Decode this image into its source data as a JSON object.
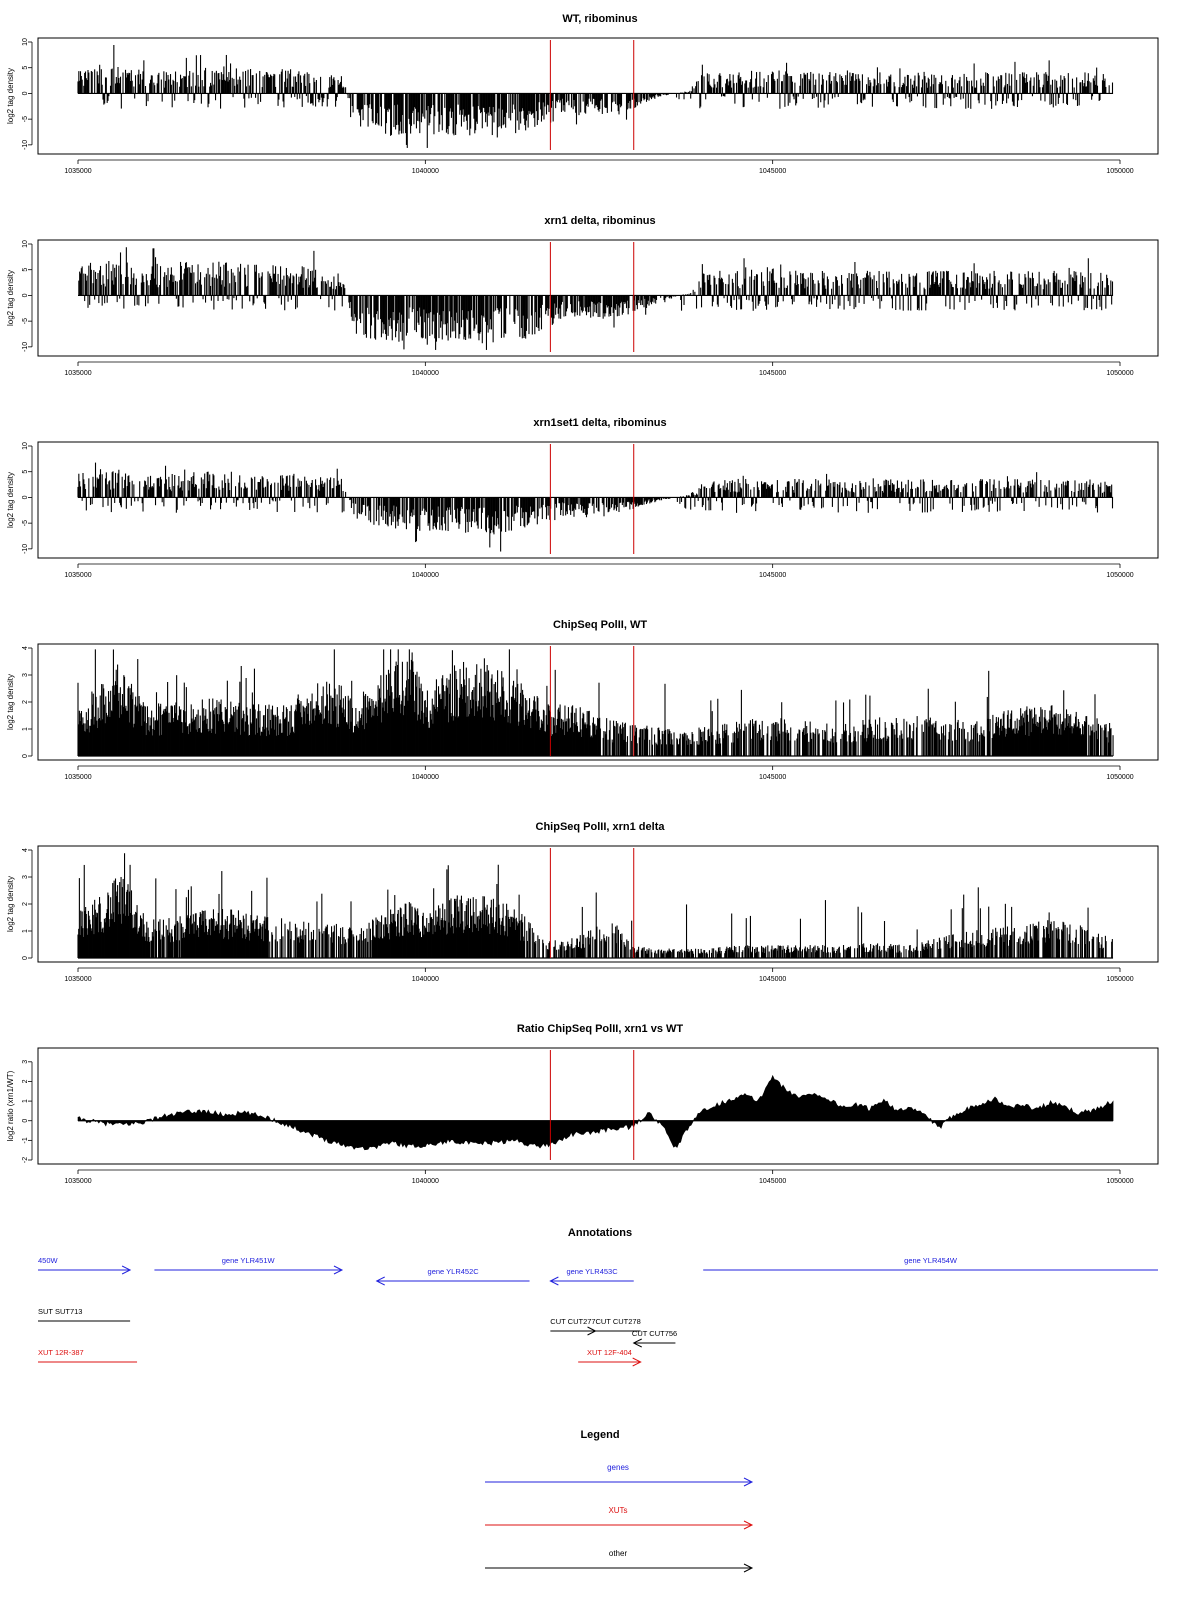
{
  "chart_data": [
    {
      "type": "bar",
      "title": "WT, ribominus",
      "xlabel": "",
      "ylabel": "log2 tag density",
      "xlim": [
        1035000,
        1050000
      ],
      "ylim": [
        -11,
        10
      ],
      "xticks": [
        1035000,
        1040000,
        1045000,
        1050000
      ],
      "yticks": [
        -10,
        -5,
        0,
        5,
        10
      ],
      "markers": [
        1041800,
        1043000
      ],
      "profile_x": [
        1035000,
        1035500,
        1036000,
        1036500,
        1037000,
        1037500,
        1038000,
        1038500,
        1038800,
        1039000,
        1039500,
        1040000,
        1040500,
        1041000,
        1041500,
        1041800,
        1042000,
        1042500,
        1043000,
        1043400,
        1043800,
        1044000,
        1044500,
        1045000,
        1045500,
        1046000,
        1046500,
        1047000,
        1047500,
        1048000,
        1048500,
        1049000,
        1049500,
        1049900
      ],
      "profile_y": [
        4.5,
        5,
        3.5,
        4,
        4.5,
        4,
        4,
        3.5,
        3,
        -6,
        -7,
        -6.5,
        -7,
        -7.5,
        -6,
        -5,
        -3,
        -3.5,
        -2.5,
        -0.5,
        0.5,
        3.5,
        3.5,
        4,
        3.5,
        3.5,
        3.5,
        3.5,
        3.5,
        3.5,
        3.5,
        3.5,
        3.5,
        3
      ]
    },
    {
      "type": "bar",
      "title": "xrn1 delta, ribominus",
      "xlabel": "",
      "ylabel": "log2 tag density",
      "xlim": [
        1035000,
        1050000
      ],
      "ylim": [
        -11,
        10
      ],
      "xticks": [
        1035000,
        1040000,
        1045000,
        1050000
      ],
      "yticks": [
        -10,
        -5,
        0,
        5,
        10
      ],
      "markers": [
        1041800,
        1043000
      ],
      "profile_x": [
        1035000,
        1035500,
        1036000,
        1036500,
        1037000,
        1037500,
        1038000,
        1038500,
        1038800,
        1039000,
        1039500,
        1040000,
        1040500,
        1041000,
        1041500,
        1041800,
        1042000,
        1042500,
        1043000,
        1043400,
        1043800,
        1044000,
        1044500,
        1045000,
        1045500,
        1046000,
        1046500,
        1047000,
        1047500,
        1048000,
        1048500,
        1049000,
        1049500,
        1049900
      ],
      "profile_y": [
        5,
        6,
        5,
        5.5,
        5.5,
        5,
        5,
        4.5,
        3.5,
        -7,
        -7.5,
        -7.5,
        -7.5,
        -8,
        -7,
        -5,
        -3.5,
        -4,
        -3,
        -1,
        0.5,
        4,
        4,
        4.5,
        4,
        4,
        4,
        4,
        4,
        4,
        4,
        4,
        4,
        3.5
      ]
    },
    {
      "type": "bar",
      "title": "xrn1set1 delta, ribominus",
      "xlabel": "",
      "ylabel": "log2 tag density",
      "xlim": [
        1035000,
        1050000
      ],
      "ylim": [
        -11,
        10
      ],
      "xticks": [
        1035000,
        1040000,
        1045000,
        1050000
      ],
      "yticks": [
        -10,
        -5,
        0,
        5,
        10
      ],
      "markers": [
        1041800,
        1043000
      ],
      "profile_x": [
        1035000,
        1035500,
        1036000,
        1036500,
        1037000,
        1037500,
        1038000,
        1038500,
        1038800,
        1039000,
        1039500,
        1040000,
        1040500,
        1041000,
        1041500,
        1041800,
        1042000,
        1042500,
        1043000,
        1043400,
        1043800,
        1044000,
        1044500,
        1045000,
        1045500,
        1046000,
        1046500,
        1047000,
        1047500,
        1048000,
        1048500,
        1049000,
        1049500,
        1049900
      ],
      "profile_y": [
        4,
        5,
        3.5,
        4,
        4.5,
        4,
        4,
        3.5,
        3,
        -4,
        -5,
        -5.5,
        -6,
        -6,
        -5,
        -4,
        -3,
        -3.5,
        -2,
        -0.5,
        0.5,
        2.5,
        3,
        3,
        3,
        3,
        3,
        3,
        3,
        3,
        3,
        3,
        3,
        2.5
      ]
    },
    {
      "type": "bar",
      "title": "ChipSeq PolII, WT",
      "xlabel": "",
      "ylabel": "log2 tag density",
      "xlim": [
        1035000,
        1050000
      ],
      "ylim": [
        0,
        4
      ],
      "xticks": [
        1035000,
        1040000,
        1045000,
        1050000
      ],
      "yticks": [
        0,
        1,
        2,
        3,
        4
      ],
      "markers": [
        1041800,
        1043000
      ],
      "profile_x": [
        1035000,
        1035300,
        1035600,
        1035800,
        1036000,
        1036500,
        1037000,
        1037500,
        1038000,
        1038500,
        1038800,
        1039000,
        1039300,
        1039600,
        1039800,
        1040000,
        1040300,
        1040600,
        1040900,
        1041200,
        1041500,
        1041800,
        1042100,
        1042400,
        1042700,
        1043000,
        1043300,
        1043600,
        1044000,
        1044500,
        1045000,
        1045500,
        1046000,
        1046500,
        1047000,
        1047500,
        1048000,
        1048500,
        1049000,
        1049500,
        1049900
      ],
      "profile_y": [
        1.6,
        2.2,
        3.1,
        2.3,
        1.6,
        1.7,
        1.8,
        1.6,
        1.6,
        2.6,
        2.2,
        1.6,
        2.4,
        3,
        3.4,
        2.2,
        2.6,
        3.1,
        3,
        2.7,
        2,
        1.6,
        1.6,
        1.4,
        1.1,
        1.0,
        0.9,
        0.8,
        0.9,
        1.1,
        1.2,
        1.1,
        1.0,
        1.2,
        1.3,
        1.1,
        1.2,
        1.5,
        1.6,
        1.3,
        1.0
      ]
    },
    {
      "type": "bar",
      "title": "ChipSeq PolII, xrn1 delta",
      "xlabel": "",
      "ylabel": "log2 tag density",
      "xlim": [
        1035000,
        1050000
      ],
      "ylim": [
        0,
        4
      ],
      "xticks": [
        1035000,
        1040000,
        1045000,
        1050000
      ],
      "yticks": [
        0,
        1,
        2,
        3,
        4
      ],
      "markers": [
        1041800,
        1043000
      ],
      "profile_x": [
        1035000,
        1035300,
        1035600,
        1035800,
        1036000,
        1036500,
        1037000,
        1037500,
        1038000,
        1038500,
        1038800,
        1039000,
        1039300,
        1039600,
        1039800,
        1040000,
        1040300,
        1040600,
        1040900,
        1041200,
        1041500,
        1041800,
        1042100,
        1042400,
        1042700,
        1043000,
        1043300,
        1043600,
        1044000,
        1044500,
        1045000,
        1045500,
        1046000,
        1046500,
        1047000,
        1047500,
        1048000,
        1048500,
        1049000,
        1049500,
        1049900
      ],
      "profile_y": [
        1.4,
        1.9,
        2.6,
        2.1,
        1.2,
        1.3,
        1.6,
        1.4,
        1.2,
        1.2,
        1.0,
        0.9,
        1.3,
        1.6,
        1.8,
        1.4,
        1.8,
        2.1,
        2.0,
        1.7,
        1.2,
        0.6,
        0.6,
        0.9,
        1.2,
        0.4,
        0.3,
        0.3,
        0.3,
        0.4,
        0.4,
        0.4,
        0.4,
        0.5,
        0.4,
        0.7,
        0.9,
        1.0,
        1.2,
        1.0,
        0.6
      ]
    },
    {
      "type": "area",
      "title": "Ratio ChipSeq PolII, xrn1 vs WT",
      "xlabel": "",
      "ylabel": "log2 ratio (xrn1/WT)",
      "xlim": [
        1035000,
        1050000
      ],
      "ylim": [
        -2,
        3.5
      ],
      "xticks": [
        1035000,
        1040000,
        1045000,
        1050000
      ],
      "yticks": [
        -2,
        -1,
        0,
        1,
        2,
        3
      ],
      "markers": [
        1041800,
        1043000
      ],
      "x": [
        1035000,
        1035300,
        1035600,
        1035900,
        1036200,
        1036500,
        1036800,
        1037100,
        1037400,
        1037700,
        1038000,
        1038300,
        1038600,
        1038900,
        1039200,
        1039500,
        1039800,
        1040100,
        1040400,
        1040700,
        1041000,
        1041300,
        1041600,
        1041800,
        1042100,
        1042400,
        1042700,
        1043000,
        1043200,
        1043400,
        1043600,
        1043800,
        1044000,
        1044200,
        1044400,
        1044600,
        1044800,
        1045000,
        1045200,
        1045400,
        1045600,
        1045800,
        1046000,
        1046200,
        1046400,
        1046600,
        1046800,
        1047000,
        1047200,
        1047400,
        1047600,
        1047800,
        1048000,
        1048200,
        1048400,
        1048600,
        1048800,
        1049000,
        1049200,
        1049400,
        1049600,
        1049900
      ],
      "y": [
        0.1,
        -0.1,
        -0.2,
        -0.1,
        0.2,
        0.4,
        0.5,
        0.3,
        0.4,
        0.2,
        -0.2,
        -0.6,
        -1.0,
        -1.3,
        -1.4,
        -1.1,
        -1.3,
        -1.2,
        -1.0,
        -1.2,
        -1.1,
        -1.0,
        -1.3,
        -1.2,
        -0.7,
        -0.6,
        -0.4,
        -0.3,
        0.4,
        -0.2,
        -1.4,
        -0.3,
        0.6,
        0.8,
        1.1,
        1.3,
        1.0,
        2.3,
        1.5,
        1.2,
        1.4,
        1.1,
        0.7,
        0.8,
        0.6,
        1.1,
        0.5,
        0.6,
        0.3,
        -0.4,
        0.3,
        0.6,
        0.9,
        1.1,
        0.7,
        0.8,
        0.6,
        0.9,
        0.7,
        0.4,
        0.5,
        1.0
      ]
    }
  ],
  "annotations": {
    "title": "Annotations",
    "xlim": [
      1035000,
      1050000
    ],
    "tracks": [
      {
        "label": "450W",
        "start": 1034300,
        "end": 1035750,
        "strand": "+",
        "type": "gene",
        "row": 0
      },
      {
        "label": "gene YLR451W",
        "start": 1036100,
        "end": 1038800,
        "strand": "+",
        "type": "gene",
        "row": 0
      },
      {
        "label": "gene YLR452C",
        "start": 1039300,
        "end": 1041500,
        "strand": "-",
        "type": "gene",
        "row": 1
      },
      {
        "label": "gene YLR453C",
        "start": 1041800,
        "end": 1043000,
        "strand": "-",
        "type": "gene",
        "row": 1
      },
      {
        "label": "gene YLR454W",
        "start": 1044000,
        "end": 1050700,
        "strand": "+",
        "type": "gene",
        "row": 0
      },
      {
        "label": "SUT SUT713",
        "start": 1034300,
        "end": 1035750,
        "strand": "none",
        "type": "other",
        "row": 3
      },
      {
        "label": "CUT CUT277",
        "start": 1041800,
        "end": 1042450,
        "strand": "+",
        "type": "other",
        "row": 4
      },
      {
        "label": "CUT CUT278",
        "start": 1042450,
        "end": 1043100,
        "strand": "none",
        "type": "other",
        "row": 4
      },
      {
        "label": "CUT CUT756",
        "start": 1043000,
        "end": 1043600,
        "strand": "-",
        "type": "other",
        "row": 5
      },
      {
        "label": "XUT 12R-387",
        "start": 1034300,
        "end": 1035850,
        "strand": "none",
        "type": "xut",
        "row": 6
      },
      {
        "label": "XUT 12F-404",
        "start": 1042200,
        "end": 1043100,
        "strand": "+",
        "type": "xut",
        "row": 6
      }
    ]
  },
  "legend": {
    "title": "Legend",
    "items": [
      {
        "label": "genes",
        "type": "gene"
      },
      {
        "label": "XUTs",
        "type": "xut"
      },
      {
        "label": "other",
        "type": "other"
      }
    ]
  },
  "colors": {
    "gene": "#2222dd",
    "xut": "#dd1111",
    "other": "#000000",
    "marker": "#cc0000",
    "bar": "#000000"
  }
}
